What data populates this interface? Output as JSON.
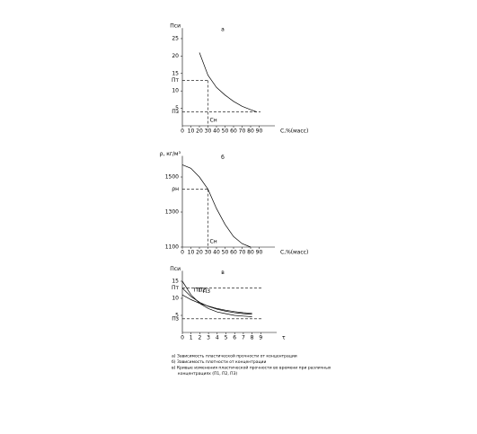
{
  "chart_data": [
    {
      "type": "line",
      "title": "а",
      "ylabel": "Пси",
      "xlabel": "С,%(масс)",
      "x": [
        20,
        30,
        40,
        50,
        60,
        70,
        80,
        87
      ],
      "series": [
        {
          "color": "#000000",
          "values": [
            21,
            14.5,
            11,
            8.8,
            7,
            5.6,
            4.6,
            4
          ]
        }
      ],
      "xlim": [
        0,
        100
      ],
      "ylim": [
        0,
        27
      ],
      "xticks": [
        0,
        10,
        20,
        30,
        40,
        50,
        60,
        70,
        80,
        90
      ],
      "yticks": [
        5,
        10,
        15,
        20,
        25
      ],
      "thresholds": [
        {
          "label": "Пт",
          "value": 13
        },
        {
          "label": "Пз",
          "value": 4
        }
      ],
      "critical": {
        "label": "Сн",
        "value": 30
      }
    },
    {
      "type": "line",
      "title": "б",
      "ylabel": "ρ, кг/м³",
      "xlabel": "С,%(масс)",
      "x": [
        0,
        10,
        20,
        30,
        40,
        50,
        60,
        70,
        80
      ],
      "series": [
        {
          "color": "#000000",
          "values": [
            1570,
            1550,
            1500,
            1430,
            1320,
            1230,
            1160,
            1120,
            1100
          ]
        }
      ],
      "xlim": [
        0,
        100
      ],
      "ylim": [
        1100,
        1600
      ],
      "xticks": [
        0,
        10,
        20,
        30,
        40,
        50,
        60,
        70,
        80,
        90
      ],
      "yticks": [
        1100,
        1300,
        1500
      ],
      "thresholds": [
        {
          "label": "ρн",
          "value": 1430
        }
      ],
      "critical": {
        "label": "Сн",
        "value": 30
      }
    },
    {
      "type": "line",
      "title": "в",
      "ylabel": "Пси",
      "xlabel": "τ",
      "x": [
        0,
        1,
        2,
        3,
        4,
        5,
        6,
        7,
        8
      ],
      "series": [
        {
          "name": "П1",
          "color": "#000000",
          "values": [
            15,
            11,
            8.5,
            7,
            6,
            5.5,
            5,
            4.8,
            4.6
          ]
        },
        {
          "name": "П2",
          "color": "#000000",
          "values": [
            13,
            10.5,
            8.8,
            7.6,
            6.8,
            6.2,
            5.8,
            5.5,
            5.3
          ]
        },
        {
          "name": "П3",
          "color": "#000000",
          "values": [
            11,
            9.6,
            8.5,
            7.7,
            7,
            6.5,
            6.1,
            5.8,
            5.6
          ]
        }
      ],
      "xlim": [
        0,
        10
      ],
      "ylim": [
        0,
        17
      ],
      "xticks": [
        0,
        1,
        2,
        3,
        4,
        5,
        6,
        7,
        8,
        9
      ],
      "yticks": [
        5,
        10,
        15
      ],
      "thresholds": [
        {
          "label": "Пт",
          "value": 13
        },
        {
          "label": "Пз",
          "value": 4
        }
      ],
      "caption": [
        "а) Зависимость пластической прочности от концентрации",
        "б) Зависимость плотности от концентрации",
        "в) Кривые изменения пластической прочности во времени при различных",
        "концентрациях (П1, П2, П3)"
      ]
    }
  ]
}
